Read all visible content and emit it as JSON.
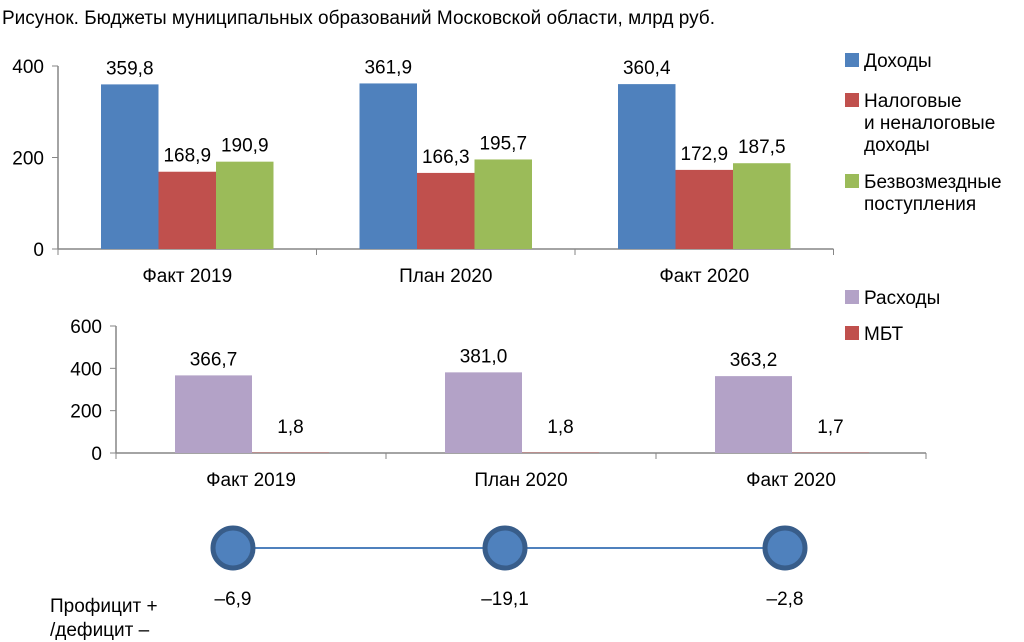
{
  "title": "Рисунок. Бюджеты муниципальных образований Московской области, млрд руб.",
  "chart_data": [
    {
      "type": "bar",
      "categories": [
        "Факт 2019",
        "План 2020",
        "Факт 2020"
      ],
      "ylim": [
        0,
        400
      ],
      "yticks": [
        "0",
        "200",
        "400"
      ],
      "series": [
        {
          "name": "Доходы",
          "name_lines": [
            "Доходы"
          ],
          "color": "#4f81bd",
          "values": [
            359.8,
            361.9,
            360.4
          ],
          "labels": [
            "359,8",
            "361,9",
            "360,4"
          ]
        },
        {
          "name": "Налоговые и неналоговые доходы",
          "name_lines": [
            "Налоговые",
            "и неналоговые",
            "доходы"
          ],
          "color": "#c0504d",
          "values": [
            168.9,
            166.3,
            172.9
          ],
          "labels": [
            "168,9",
            "166,3",
            "172,9"
          ]
        },
        {
          "name": "Безвозмездные поступления",
          "name_lines": [
            "Безвозмездные",
            "поступления"
          ],
          "color": "#9bbb59",
          "values": [
            190.9,
            195.7,
            187.5
          ],
          "labels": [
            "190,9",
            "195,7",
            "187,5"
          ]
        }
      ]
    },
    {
      "type": "bar",
      "categories": [
        "Факт 2019",
        "План 2020",
        "Факт 2020"
      ],
      "ylim": [
        0,
        600
      ],
      "yticks": [
        "0",
        "200",
        "400",
        "600"
      ],
      "series": [
        {
          "name": "Расходы",
          "name_lines": [
            "Расходы"
          ],
          "color": "#b3a2c7",
          "values": [
            366.7,
            381.0,
            363.2
          ],
          "labels": [
            "366,7",
            "381,0",
            "363,2"
          ]
        },
        {
          "name": "МБТ",
          "name_lines": [
            "МБТ"
          ],
          "color": "#c0504d",
          "values": [
            1.8,
            1.8,
            1.7
          ],
          "labels": [
            "1,8",
            "1,8",
            "1,7"
          ]
        }
      ]
    },
    {
      "type": "line",
      "name": "Профицит + /дефицит –",
      "name_lines": [
        "Профицит +",
        "/дефицит –"
      ],
      "categories": [
        "Факт 2019",
        "План 2020",
        "Факт 2020"
      ],
      "values": [
        -6.9,
        -19.1,
        -2.8
      ],
      "labels": [
        "–6,9",
        "–19,1",
        "–2,8"
      ],
      "color": "#4f81bd"
    }
  ]
}
